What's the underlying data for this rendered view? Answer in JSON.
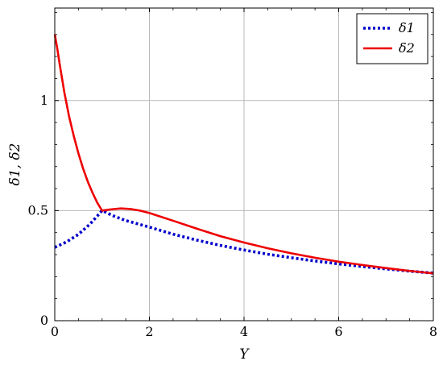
{
  "chart_data": {
    "type": "line",
    "title": "",
    "xlabel": "Y",
    "ylabel": "δ1, δ2",
    "xlim": [
      0,
      8
    ],
    "ylim": [
      0,
      1.42
    ],
    "grid": true,
    "legend_position": "top-right",
    "x_ticks": [
      {
        "value": 0,
        "label": "0"
      },
      {
        "value": 2,
        "label": "2"
      },
      {
        "value": 4,
        "label": "4"
      },
      {
        "value": 6,
        "label": "6"
      },
      {
        "value": 8,
        "label": "8"
      }
    ],
    "y_ticks": [
      {
        "value": 0,
        "label": "0"
      },
      {
        "value": 0.5,
        "label": "0.5"
      },
      {
        "value": 1,
        "label": "1"
      }
    ],
    "series": [
      {
        "name": "δ1",
        "color": "#0000cc",
        "style": "dotted",
        "x": [
          0,
          0.25,
          0.5,
          0.75,
          1.0,
          1.25,
          1.5,
          2.0,
          2.5,
          3.0,
          3.5,
          4.0,
          4.5,
          5.0,
          5.5,
          6.0,
          6.5,
          7.0,
          7.5,
          8.0
        ],
        "y": [
          0.333,
          0.358,
          0.392,
          0.44,
          0.5,
          0.475,
          0.455,
          0.425,
          0.393,
          0.366,
          0.342,
          0.321,
          0.302,
          0.286,
          0.271,
          0.258,
          0.246,
          0.235,
          0.225,
          0.216
        ]
      },
      {
        "name": "δ2",
        "color": "#ee0000",
        "style": "solid",
        "x": [
          0,
          0.05,
          0.1,
          0.2,
          0.3,
          0.4,
          0.5,
          0.6,
          0.7,
          0.8,
          0.9,
          1.0,
          1.1,
          1.2,
          1.4,
          1.6,
          1.8,
          2.0,
          2.5,
          3.0,
          3.5,
          4.0,
          4.5,
          5.0,
          5.5,
          6.0,
          6.5,
          7.0,
          7.5,
          8.0
        ],
        "y": [
          1.3,
          1.24,
          1.17,
          1.04,
          0.93,
          0.84,
          0.76,
          0.69,
          0.63,
          0.58,
          0.535,
          0.5,
          0.503,
          0.506,
          0.51,
          0.507,
          0.5,
          0.489,
          0.454,
          0.418,
          0.384,
          0.355,
          0.329,
          0.306,
          0.286,
          0.268,
          0.253,
          0.239,
          0.226,
          0.215
        ]
      }
    ]
  }
}
